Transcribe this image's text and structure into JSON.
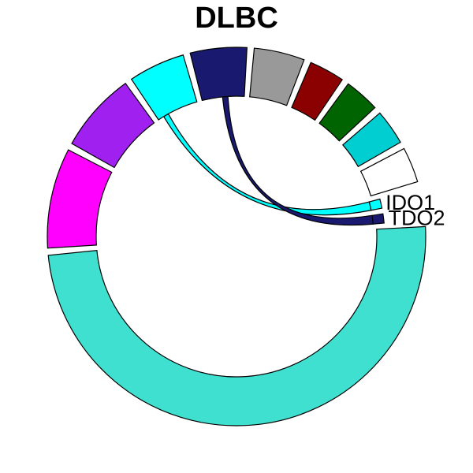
{
  "chart_data": {
    "type": "chord",
    "title": "DLBC",
    "sectors": [
      {
        "name": "",
        "value": 49.0,
        "color": "#40E0D0"
      },
      {
        "name": "",
        "value": 8.5,
        "color": "#FF00FF"
      },
      {
        "name": "",
        "value": 6.8,
        "color": "#A020F0"
      },
      {
        "name": "",
        "value": 4.8,
        "color": "#00FFFF"
      },
      {
        "name": "",
        "value": 4.8,
        "color": "#191970"
      },
      {
        "name": "",
        "value": 4.3,
        "color": "#999999"
      },
      {
        "name": "",
        "value": 3.0,
        "color": "#8B0000"
      },
      {
        "name": "",
        "value": 3.0,
        "color": "#006400"
      },
      {
        "name": "",
        "value": 3.0,
        "color": "#00CED1"
      },
      {
        "name": "",
        "value": 3.0,
        "color": "#FFFFFF"
      },
      {
        "name": "IDO1",
        "value": 1.0,
        "color": "#00FFFF"
      },
      {
        "name": "TDO2",
        "value": 1.0,
        "color": "#191970"
      }
    ],
    "links": [
      {
        "from": 3,
        "to": 10,
        "color": "#00FFFF"
      },
      {
        "from": 4,
        "to": 11,
        "color": "#191970"
      }
    ]
  }
}
